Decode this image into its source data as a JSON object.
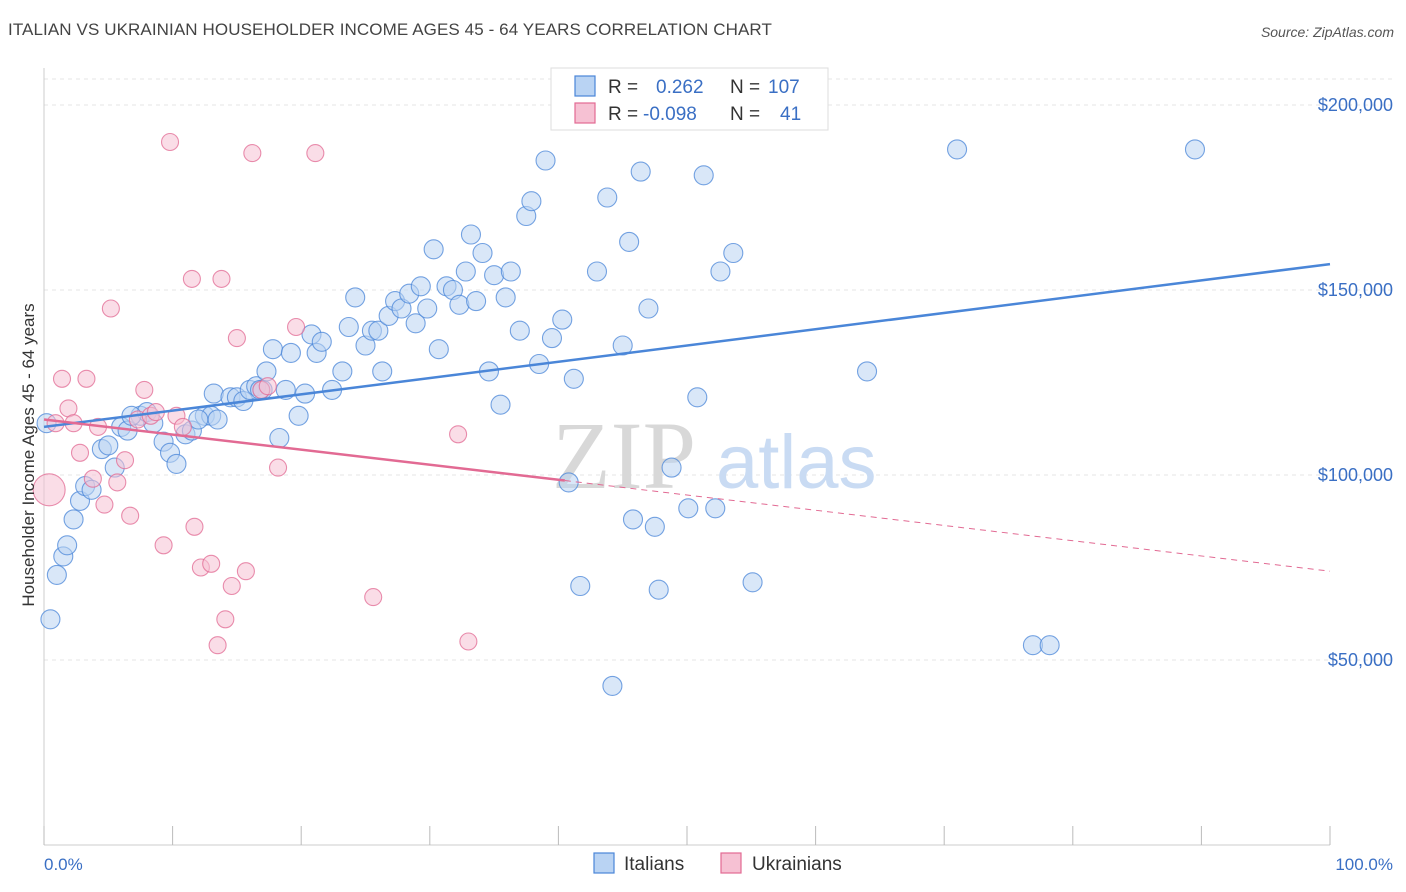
{
  "title": "ITALIAN VS UKRAINIAN HOUSEHOLDER INCOME AGES 45 - 64 YEARS CORRELATION CHART",
  "source": "Source: ZipAtlas.com",
  "watermark": {
    "part1": "ZIP",
    "part2": "atlas"
  },
  "colors": {
    "italians": "#4a86d8",
    "italians_fill": "#b9d3f3",
    "ukrainians": "#e26a93",
    "ukrainians_fill": "#f6c1d3",
    "tick": "#3a6fc4"
  },
  "legend_top": [
    {
      "r_label": "R =",
      "r_value": "0.262",
      "n_label": "N =",
      "n_value": "107"
    },
    {
      "r_label": "R =",
      "r_value": "-0.098",
      "n_label": "N =",
      "n_value": "41"
    }
  ],
  "chart_data": {
    "type": "scatter",
    "title": "ITALIAN VS UKRAINIAN HOUSEHOLDER INCOME AGES 45 - 64 YEARS CORRELATION CHART",
    "xlabel": "",
    "ylabel": "Householder Income Ages 45 - 64 years",
    "xlim": [
      0,
      100
    ],
    "ylim": [
      0,
      210000
    ],
    "x_tick_labels": [
      "0.0%",
      "100.0%"
    ],
    "y_ticks": [
      50000,
      100000,
      150000,
      200000
    ],
    "y_tick_labels": [
      "$50,000",
      "$100,000",
      "$150,000",
      "$200,000"
    ],
    "grid": true,
    "legend_position": "top-center",
    "series": [
      {
        "name": "Italians",
        "r": 0.262,
        "n": 107,
        "trend": {
          "x": [
            0,
            100
          ],
          "y": [
            113000,
            157000
          ]
        },
        "points": [
          [
            0.5,
            61000
          ],
          [
            1.0,
            73000
          ],
          [
            1.5,
            78000
          ],
          [
            1.8,
            81000
          ],
          [
            2.3,
            88000
          ],
          [
            2.8,
            93000
          ],
          [
            3.2,
            97000
          ],
          [
            3.7,
            96000
          ],
          [
            4.5,
            107000
          ],
          [
            5.0,
            108000
          ],
          [
            5.5,
            102000
          ],
          [
            6.0,
            113000
          ],
          [
            6.5,
            112000
          ],
          [
            7.5,
            116000
          ],
          [
            8.0,
            117000
          ],
          [
            8.5,
            114000
          ],
          [
            9.3,
            109000
          ],
          [
            9.8,
            106000
          ],
          [
            10.3,
            103000
          ],
          [
            11.0,
            111000
          ],
          [
            11.5,
            112000
          ],
          [
            12.5,
            116000
          ],
          [
            13.0,
            116000
          ],
          [
            13.5,
            115000
          ],
          [
            13.2,
            122000
          ],
          [
            14.5,
            121000
          ],
          [
            15.0,
            121000
          ],
          [
            15.5,
            120000
          ],
          [
            16.0,
            123000
          ],
          [
            16.5,
            124000
          ],
          [
            17.0,
            123000
          ],
          [
            17.3,
            128000
          ],
          [
            17.8,
            134000
          ],
          [
            18.3,
            110000
          ],
          [
            18.8,
            123000
          ],
          [
            19.2,
            133000
          ],
          [
            19.8,
            116000
          ],
          [
            20.3,
            122000
          ],
          [
            20.8,
            138000
          ],
          [
            21.2,
            133000
          ],
          [
            21.6,
            136000
          ],
          [
            22.4,
            123000
          ],
          [
            23.2,
            128000
          ],
          [
            23.7,
            140000
          ],
          [
            24.2,
            148000
          ],
          [
            25.0,
            135000
          ],
          [
            25.5,
            139000
          ],
          [
            26.0,
            139000
          ],
          [
            26.3,
            128000
          ],
          [
            26.8,
            143000
          ],
          [
            27.3,
            147000
          ],
          [
            27.8,
            145000
          ],
          [
            28.4,
            149000
          ],
          [
            28.9,
            141000
          ],
          [
            29.3,
            151000
          ],
          [
            29.8,
            145000
          ],
          [
            30.3,
            161000
          ],
          [
            30.7,
            134000
          ],
          [
            31.3,
            151000
          ],
          [
            31.8,
            150000
          ],
          [
            32.3,
            146000
          ],
          [
            32.8,
            155000
          ],
          [
            33.2,
            165000
          ],
          [
            33.6,
            147000
          ],
          [
            34.1,
            160000
          ],
          [
            34.6,
            128000
          ],
          [
            35.0,
            154000
          ],
          [
            35.5,
            119000
          ],
          [
            35.9,
            148000
          ],
          [
            36.3,
            155000
          ],
          [
            37.0,
            139000
          ],
          [
            37.5,
            170000
          ],
          [
            37.9,
            174000
          ],
          [
            38.5,
            130000
          ],
          [
            39.0,
            185000
          ],
          [
            39.5,
            137000
          ],
          [
            40.3,
            142000
          ],
          [
            40.8,
            98000
          ],
          [
            41.2,
            126000
          ],
          [
            41.7,
            70000
          ],
          [
            43.0,
            155000
          ],
          [
            43.8,
            175000
          ],
          [
            44.2,
            43000
          ],
          [
            45.0,
            135000
          ],
          [
            45.5,
            163000
          ],
          [
            45.8,
            88000
          ],
          [
            46.4,
            182000
          ],
          [
            47.0,
            145000
          ],
          [
            47.5,
            86000
          ],
          [
            47.8,
            69000
          ],
          [
            48.8,
            102000
          ],
          [
            50.1,
            91000
          ],
          [
            50.8,
            121000
          ],
          [
            51.3,
            181000
          ],
          [
            52.2,
            91000
          ],
          [
            52.6,
            155000
          ],
          [
            53.6,
            160000
          ],
          [
            55.1,
            71000
          ],
          [
            64.0,
            128000
          ],
          [
            71.0,
            188000
          ],
          [
            76.9,
            54000
          ],
          [
            78.2,
            54000
          ],
          [
            89.5,
            188000
          ],
          [
            0.2,
            114000
          ],
          [
            6.8,
            116000
          ],
          [
            12.0,
            115000
          ],
          [
            16.8,
            123000
          ]
        ]
      },
      {
        "name": "Ukrainians",
        "r": -0.098,
        "n": 41,
        "trend": {
          "x": [
            0,
            40.5
          ],
          "y": [
            115000,
            98500
          ]
        },
        "trend_dashed": {
          "x": [
            40.5,
            100
          ],
          "y": [
            98500,
            74000
          ]
        },
        "points": [
          [
            0.4,
            96000
          ],
          [
            0.9,
            114000
          ],
          [
            1.4,
            126000
          ],
          [
            1.9,
            118000
          ],
          [
            2.3,
            114000
          ],
          [
            2.8,
            106000
          ],
          [
            3.3,
            126000
          ],
          [
            3.8,
            99000
          ],
          [
            4.2,
            113000
          ],
          [
            4.7,
            92000
          ],
          [
            5.2,
            145000
          ],
          [
            5.7,
            98000
          ],
          [
            6.3,
            104000
          ],
          [
            6.7,
            89000
          ],
          [
            7.3,
            115000
          ],
          [
            7.8,
            123000
          ],
          [
            8.3,
            116000
          ],
          [
            8.7,
            117000
          ],
          [
            9.3,
            81000
          ],
          [
            9.8,
            190000
          ],
          [
            10.3,
            116000
          ],
          [
            10.8,
            113000
          ],
          [
            11.5,
            153000
          ],
          [
            11.7,
            86000
          ],
          [
            12.2,
            75000
          ],
          [
            13.0,
            76000
          ],
          [
            13.5,
            54000
          ],
          [
            13.8,
            153000
          ],
          [
            14.1,
            61000
          ],
          [
            14.6,
            70000
          ],
          [
            15.0,
            137000
          ],
          [
            15.7,
            74000
          ],
          [
            16.2,
            187000
          ],
          [
            16.9,
            123000
          ],
          [
            17.4,
            124000
          ],
          [
            18.2,
            102000
          ],
          [
            19.6,
            140000
          ],
          [
            21.1,
            187000
          ],
          [
            25.6,
            67000
          ],
          [
            32.2,
            111000
          ],
          [
            33.0,
            55000
          ]
        ]
      }
    ]
  },
  "bottom_legend": [
    "Italians",
    "Ukrainians"
  ]
}
